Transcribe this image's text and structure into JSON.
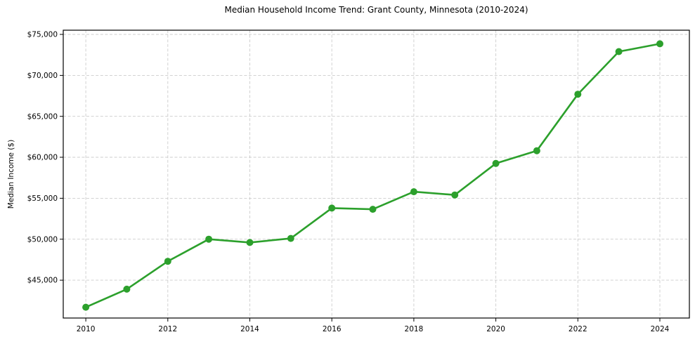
{
  "chart_data": {
    "type": "line",
    "title": "Median Household Income Trend: Grant County, Minnesota (2010-2024)",
    "xlabel": "",
    "ylabel": "Median Income ($)",
    "x": [
      2010,
      2011,
      2012,
      2013,
      2014,
      2015,
      2016,
      2017,
      2018,
      2019,
      2020,
      2021,
      2022,
      2023,
      2024
    ],
    "series": [
      {
        "name": "Median household income",
        "values": [
          41700,
          43900,
          47300,
          50000,
          49600,
          50100,
          53800,
          53650,
          55800,
          55400,
          59250,
          60800,
          67700,
          72900,
          73850
        ]
      }
    ],
    "xticks": [
      2010,
      2012,
      2014,
      2016,
      2018,
      2020,
      2022,
      2024
    ],
    "xtick_labels": [
      "2010",
      "2012",
      "2014",
      "2016",
      "2018",
      "2020",
      "2022",
      "2024"
    ],
    "yticks": [
      45000,
      50000,
      55000,
      60000,
      65000,
      70000,
      75000
    ],
    "ytick_labels": [
      "$45,000",
      "$50,000",
      "$55,000",
      "$60,000",
      "$65,000",
      "$70,000",
      "$75,000"
    ],
    "xlim": [
      2009.45,
      2024.72
    ],
    "ylim": [
      40380,
      75515
    ],
    "grid": true,
    "grid_style": "dashed",
    "legend": false,
    "marker": "circle",
    "colors": {
      "line": "#2ca02c",
      "marker": "#2ca02c",
      "grid": "#cccccc",
      "axis": "#000000",
      "background": "#ffffff",
      "text": "#000000"
    }
  }
}
